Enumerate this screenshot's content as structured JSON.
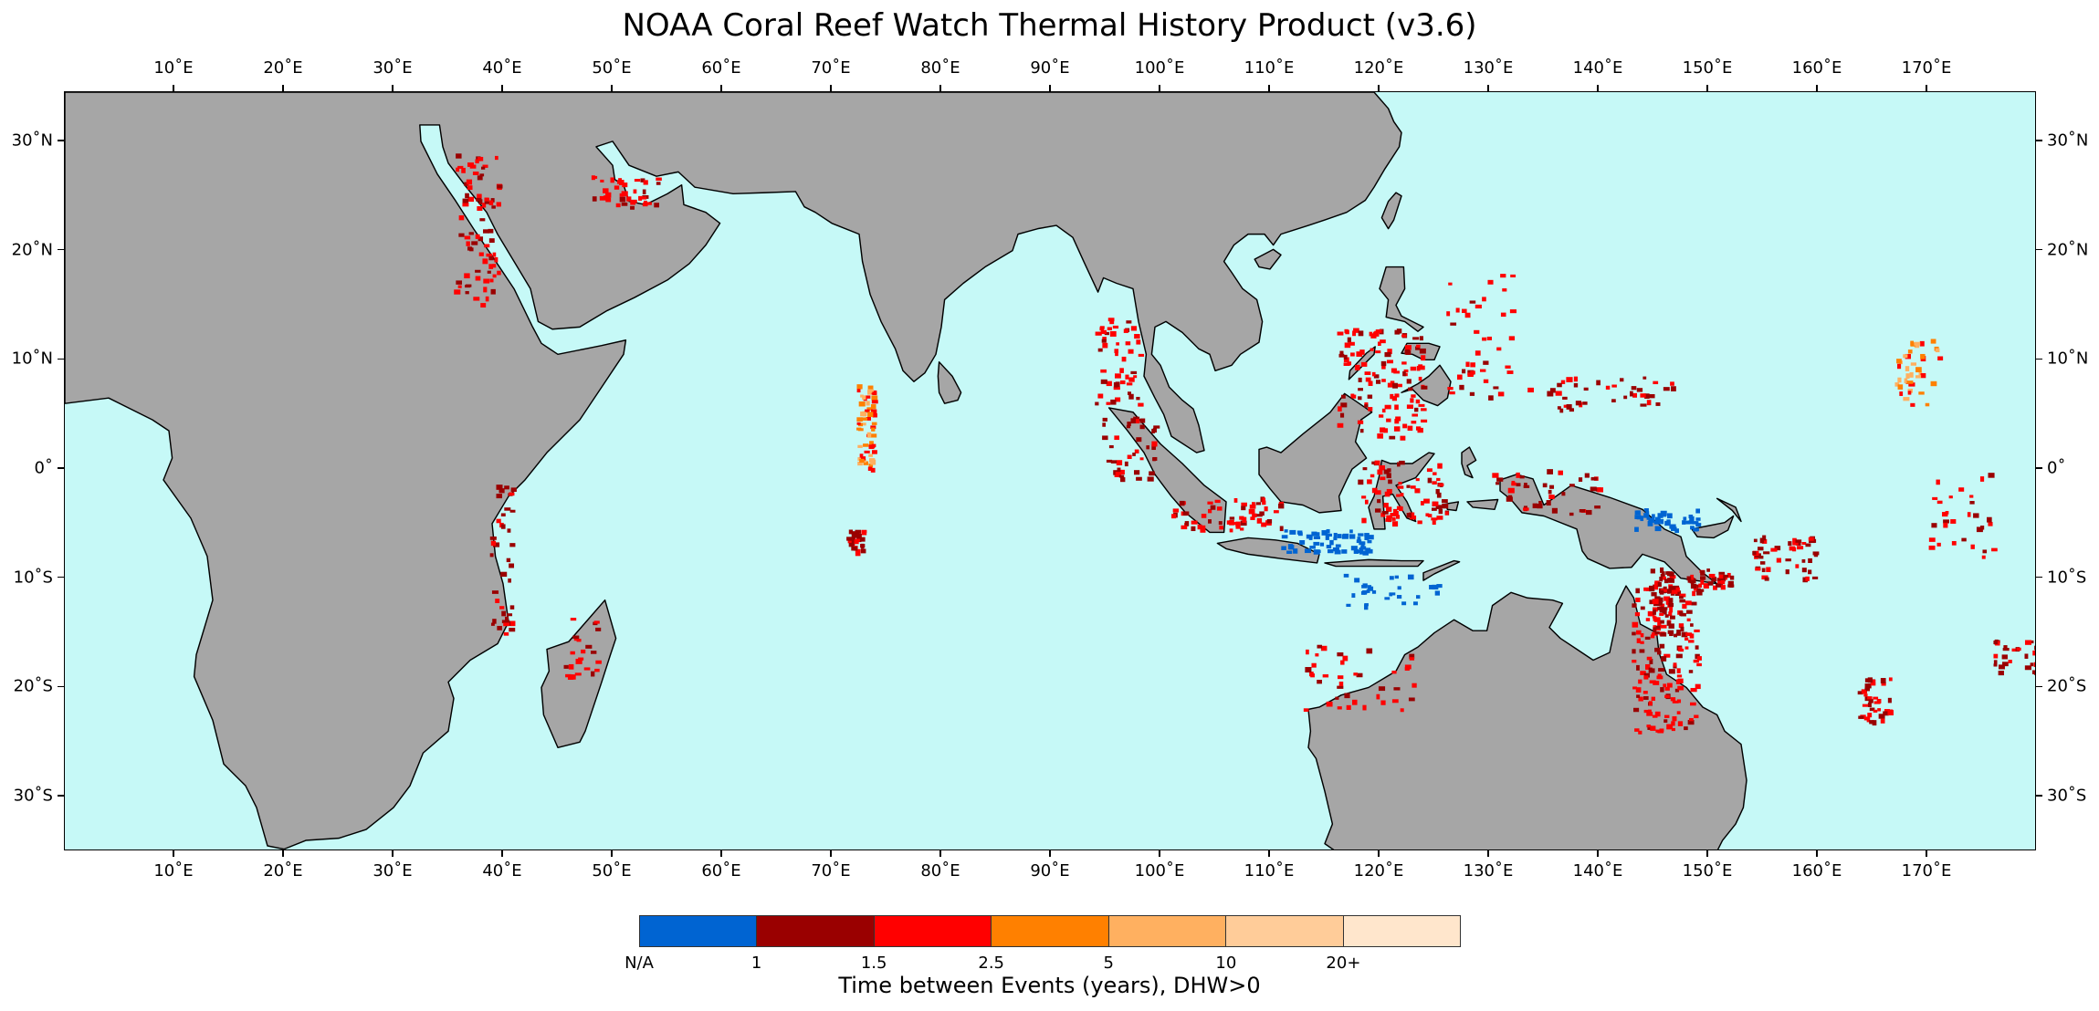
{
  "title": "NOAA Coral Reef Watch Thermal History Product (v3.6)",
  "map": {
    "lon_range": [
      0,
      180
    ],
    "lat_range": [
      -35,
      34.5
    ],
    "ocean_color": "#c6f9f7",
    "land_color": "#a6a6a6",
    "coast_color": "#000000",
    "lon_ticks": [
      "10˚E",
      "20˚E",
      "30˚E",
      "40˚E",
      "50˚E",
      "60˚E",
      "70˚E",
      "80˚E",
      "90˚E",
      "100˚E",
      "110˚E",
      "120˚E",
      "130˚E",
      "140˚E",
      "150˚E",
      "160˚E",
      "170˚E"
    ],
    "lat_ticks": [
      "30˚N",
      "20˚N",
      "10˚N",
      "0˚",
      "10˚S",
      "20˚S",
      "30˚S"
    ]
  },
  "colorbar": {
    "title": "Time between Events (years), DHW>0",
    "colors": [
      "#0064d2",
      "#9a0000",
      "#ff0000",
      "#ff8000",
      "#ffb060",
      "#ffcc99",
      "#ffe6cc"
    ],
    "labels": [
      "N/A",
      "1",
      "1.5",
      "2.5",
      "5",
      "10",
      "20+"
    ]
  }
}
